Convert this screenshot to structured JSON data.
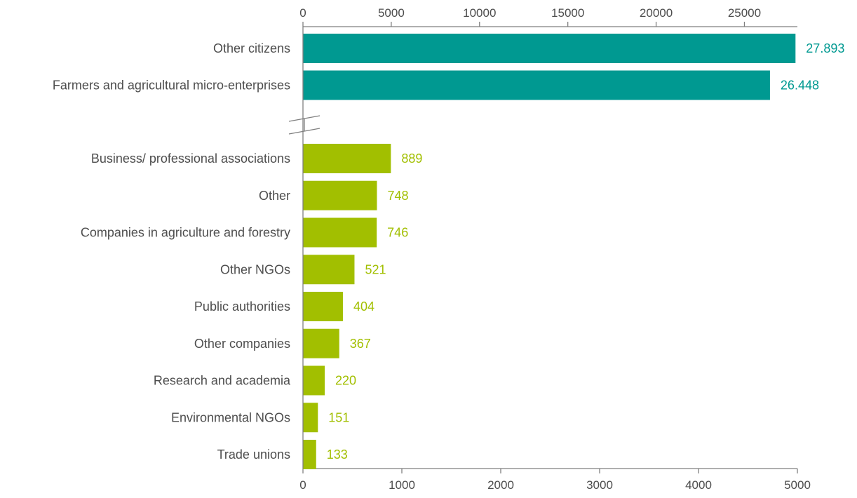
{
  "chart_data": [
    {
      "type": "bar",
      "orientation": "horizontal",
      "axis": "top",
      "xlim": [
        0,
        28000
      ],
      "ticks": [
        0,
        5000,
        10000,
        15000,
        20000,
        25000
      ],
      "tick_labels": [
        "0",
        "5000",
        "10000",
        "15000",
        "20000",
        "25000"
      ],
      "color": "#009991",
      "categories": [
        "Other citizens",
        "Farmers and agricultural micro-enterprises"
      ],
      "values": [
        27893,
        26448
      ],
      "value_labels": [
        "27.893",
        "26.448"
      ]
    },
    {
      "type": "bar",
      "orientation": "horizontal",
      "axis": "bottom",
      "xlim": [
        0,
        5000
      ],
      "ticks": [
        0,
        1000,
        2000,
        3000,
        4000,
        5000
      ],
      "tick_labels": [
        "0",
        "1000",
        "2000",
        "3000",
        "4000",
        "5000"
      ],
      "color": "#a2bf00",
      "categories": [
        "Business/ professional associations",
        "Other",
        "Companies in agriculture and forestry",
        "Other NGOs",
        "Public authorities",
        "Other companies",
        "Research and academia",
        "Environmental NGOs",
        "Trade unions"
      ],
      "values": [
        889,
        748,
        746,
        521,
        404,
        367,
        220,
        151,
        133
      ],
      "value_labels": [
        "889",
        "748",
        "746",
        "521",
        "404",
        "367",
        "220",
        "151",
        "133"
      ]
    }
  ],
  "colors": {
    "axis": "#7f7f7f",
    "text": "#4d4d4d"
  }
}
